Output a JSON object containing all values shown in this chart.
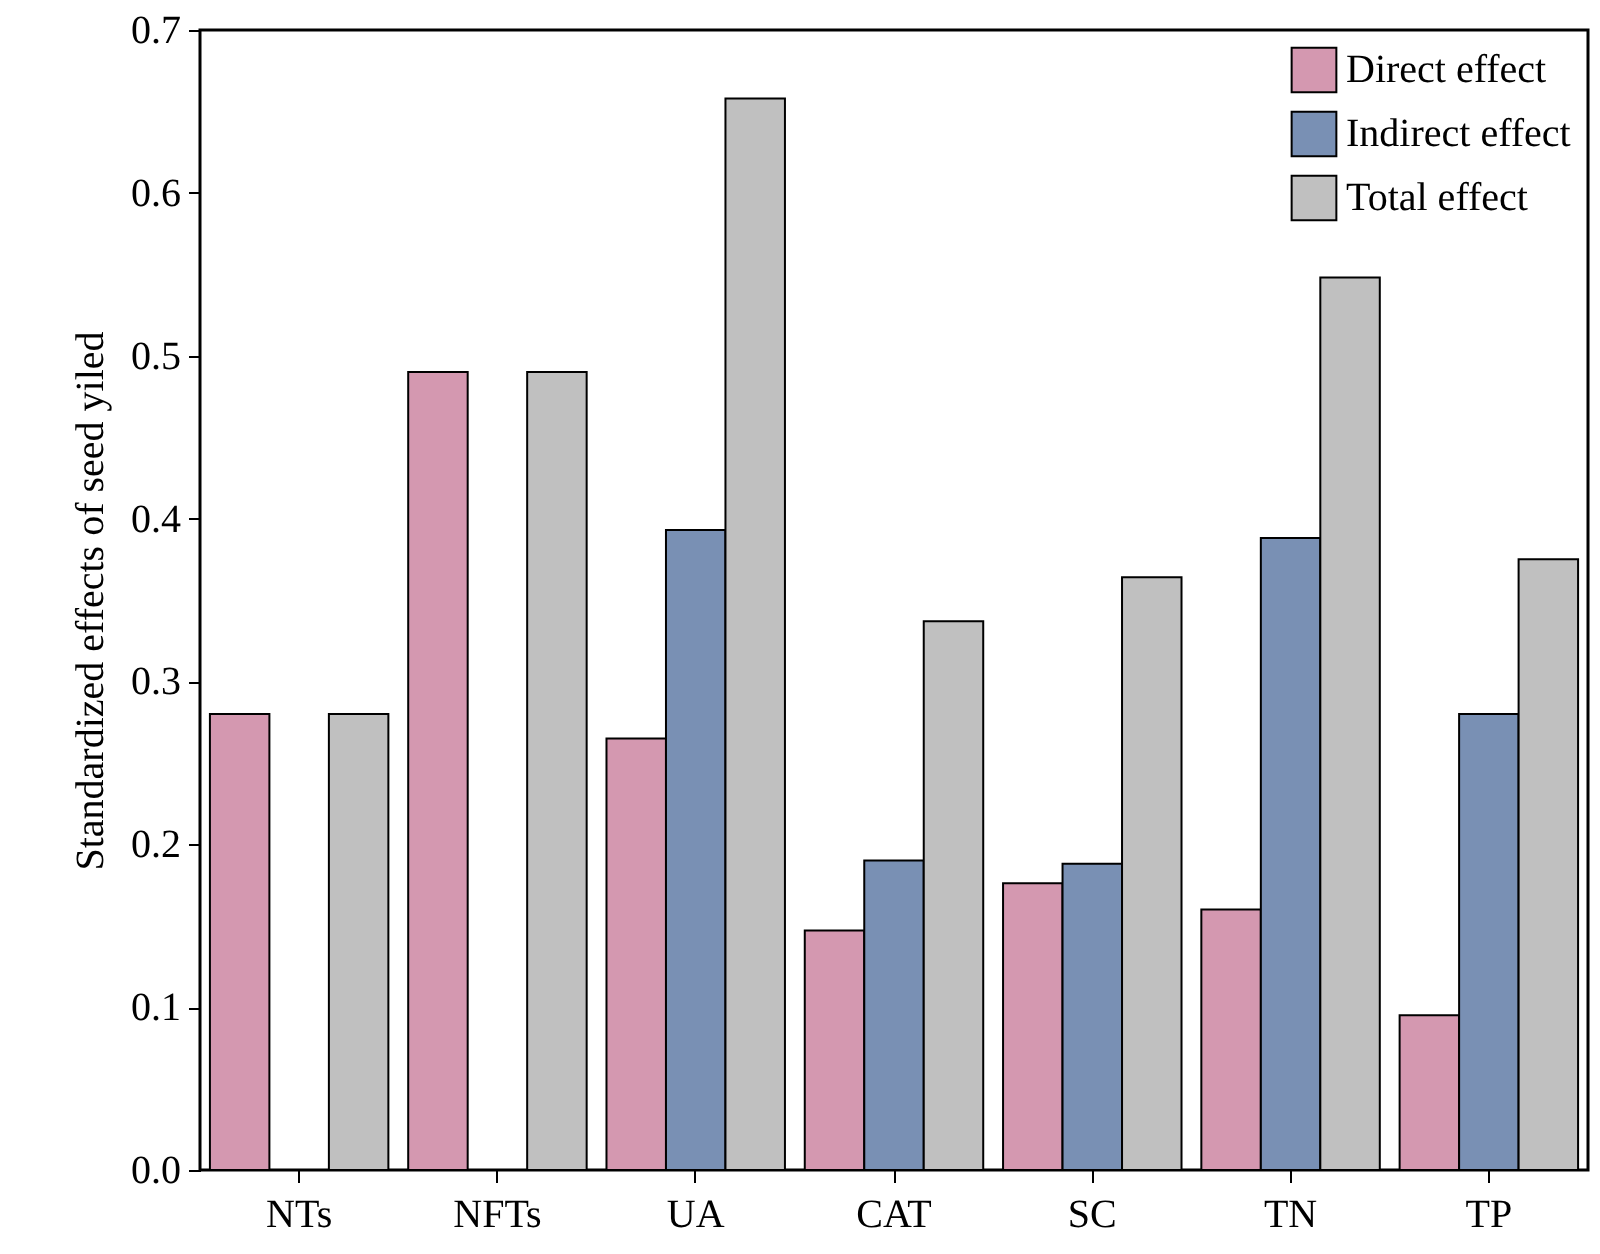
{
  "chart_data": {
    "type": "bar",
    "ylabel": "Standardized effects of seed yiled",
    "categories": [
      "NTs",
      "NFTs",
      "UA",
      "CAT",
      "SC",
      "TN",
      "TP"
    ],
    "series": [
      {
        "name": "Direct effect",
        "color": "#d498b0",
        "values": [
          0.28,
          0.49,
          0.265,
          0.147,
          0.176,
          0.16,
          0.095
        ]
      },
      {
        "name": "Indirect effect",
        "color": "#7990b4",
        "values": [
          null,
          null,
          0.393,
          0.19,
          0.188,
          0.388,
          0.28
        ]
      },
      {
        "name": "Total effect",
        "color": "#c0c0c0",
        "values": [
          0.28,
          0.49,
          0.658,
          0.337,
          0.364,
          0.548,
          0.375
        ]
      }
    ],
    "ylim": [
      0,
      0.7
    ],
    "yticks": [
      {
        "value": 0,
        "label": "0.0"
      },
      {
        "value": 0.1,
        "label": "0.1"
      },
      {
        "value": 0.2,
        "label": "0.2"
      },
      {
        "value": 0.3,
        "label": "0.3"
      },
      {
        "value": 0.4,
        "label": "0.4"
      },
      {
        "value": 0.5,
        "label": "0.5"
      },
      {
        "value": 0.6,
        "label": "0.6"
      },
      {
        "value": 0.7,
        "label": "0.7"
      }
    ],
    "grid": false,
    "legend": "top right"
  }
}
